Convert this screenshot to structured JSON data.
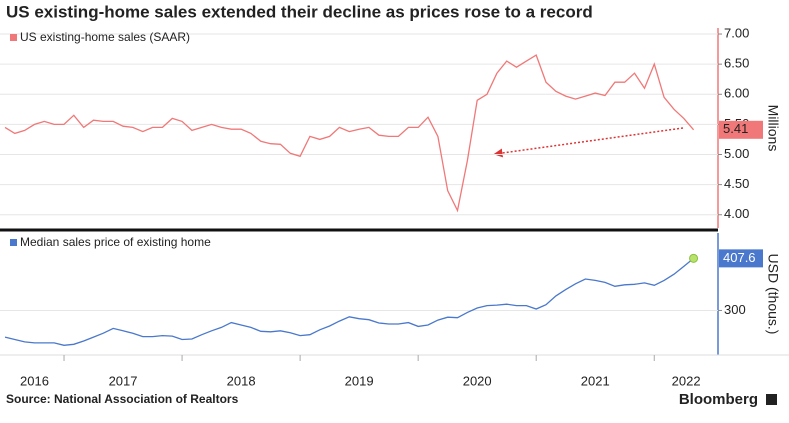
{
  "title": "US existing-home sales extended their decline as prices rose to a record",
  "source": "Source: National Association of Realtors",
  "brand": "Bloomberg",
  "chart_data": [
    {
      "type": "line",
      "ylabel": "Millions",
      "xlim": [
        2016.5,
        2022.54
      ],
      "x": [
        2016.5,
        2016.583,
        2016.667,
        2016.75,
        2016.833,
        2016.917,
        2017,
        2017.083,
        2017.167,
        2017.25,
        2017.333,
        2017.417,
        2017.5,
        2017.583,
        2017.667,
        2017.75,
        2017.833,
        2017.917,
        2018,
        2018.083,
        2018.167,
        2018.25,
        2018.333,
        2018.417,
        2018.5,
        2018.583,
        2018.667,
        2018.75,
        2018.833,
        2018.917,
        2019,
        2019.083,
        2019.167,
        2019.25,
        2019.333,
        2019.417,
        2019.5,
        2019.583,
        2019.667,
        2019.75,
        2019.833,
        2019.917,
        2020,
        2020.083,
        2020.167,
        2020.25,
        2020.333,
        2020.417,
        2020.5,
        2020.583,
        2020.667,
        2020.75,
        2020.833,
        2020.917,
        2021,
        2021.083,
        2021.167,
        2021.25,
        2021.333,
        2021.417,
        2021.5,
        2021.583,
        2021.667,
        2021.75,
        2021.833,
        2021.917,
        2022,
        2022.083,
        2022.167,
        2022.25,
        2022.333
      ],
      "series": [
        {
          "name": "US existing-home sales (SAAR)",
          "color": "#f07878",
          "values": [
            5.45,
            5.35,
            5.4,
            5.5,
            5.55,
            5.5,
            5.5,
            5.65,
            5.45,
            5.57,
            5.55,
            5.55,
            5.47,
            5.45,
            5.38,
            5.45,
            5.45,
            5.6,
            5.55,
            5.4,
            5.45,
            5.5,
            5.45,
            5.42,
            5.42,
            5.35,
            5.22,
            5.18,
            5.17,
            5.02,
            4.97,
            5.3,
            5.25,
            5.3,
            5.45,
            5.38,
            5.42,
            5.45,
            5.32,
            5.3,
            5.3,
            5.45,
            5.45,
            5.62,
            5.3,
            4.4,
            4.07,
            4.9,
            5.9,
            6.0,
            6.35,
            6.55,
            6.45,
            6.55,
            6.65,
            6.2,
            6.05,
            5.97,
            5.92,
            5.97,
            6.02,
            5.98,
            6.2,
            6.2,
            6.35,
            6.1,
            6.5,
            5.95,
            5.75,
            5.6,
            5.41
          ]
        }
      ],
      "ylim": [
        3.78,
        7.1
      ],
      "yticks": [
        {
          "value": 4,
          "label": "4.00"
        },
        {
          "value": 4.5,
          "label": "4.50"
        },
        {
          "value": 5,
          "label": "5.00"
        },
        {
          "value": 5.5,
          "label": "5.50"
        },
        {
          "value": 6,
          "label": "6.00"
        },
        {
          "value": 6.5,
          "label": "6.50"
        },
        {
          "value": 7,
          "label": "7.00"
        }
      ],
      "grid": true
    },
    {
      "type": "line",
      "ylabel": "USD (thous.)",
      "xlim": [
        2016.5,
        2022.54
      ],
      "x": [
        2016.5,
        2016.583,
        2016.667,
        2016.75,
        2016.833,
        2016.917,
        2017,
        2017.083,
        2017.167,
        2017.25,
        2017.333,
        2017.417,
        2017.5,
        2017.583,
        2017.667,
        2017.75,
        2017.833,
        2017.917,
        2018,
        2018.083,
        2018.167,
        2018.25,
        2018.333,
        2018.417,
        2018.5,
        2018.583,
        2018.667,
        2018.75,
        2018.833,
        2018.917,
        2019,
        2019.083,
        2019.167,
        2019.25,
        2019.333,
        2019.417,
        2019.5,
        2019.583,
        2019.667,
        2019.75,
        2019.833,
        2019.917,
        2020,
        2020.083,
        2020.167,
        2020.25,
        2020.333,
        2020.417,
        2020.5,
        2020.583,
        2020.667,
        2020.75,
        2020.833,
        2020.917,
        2021,
        2021.083,
        2021.167,
        2021.25,
        2021.333,
        2021.417,
        2021.5,
        2021.583,
        2021.667,
        2021.75,
        2021.833,
        2021.917,
        2022,
        2022.083,
        2022.167,
        2022.25,
        2022.333
      ],
      "series": [
        {
          "name": "Median sales price of existing home",
          "color": "#4a78cc",
          "values": [
            245,
            240,
            235,
            233,
            233,
            233,
            228,
            230,
            237,
            245,
            253,
            263,
            258,
            253,
            246,
            246,
            248,
            247,
            240,
            241,
            250,
            258,
            265,
            275,
            270,
            265,
            257,
            256,
            258,
            254,
            248,
            250,
            260,
            268,
            278,
            287,
            283,
            281,
            274,
            272,
            272,
            275,
            267,
            270,
            280,
            286,
            285,
            296,
            305,
            310,
            311,
            313,
            310,
            310,
            303,
            312,
            330,
            343,
            355,
            365,
            362,
            358,
            350,
            353,
            354,
            357,
            352,
            362,
            375,
            391,
            407.6
          ]
        }
      ],
      "ylim": [
        208,
        460
      ],
      "yticks": [
        300
      ],
      "xticks": [
        {
          "value": 2016,
          "label": "2016"
        },
        {
          "value": 2017,
          "label": "2017"
        },
        {
          "value": 2018,
          "label": "2018"
        },
        {
          "value": 2019,
          "label": "2019"
        },
        {
          "value": 2020,
          "label": "2020"
        },
        {
          "value": 2021,
          "label": "2021"
        },
        {
          "value": 2022,
          "label": "2022"
        }
      ],
      "grid": true
    }
  ]
}
